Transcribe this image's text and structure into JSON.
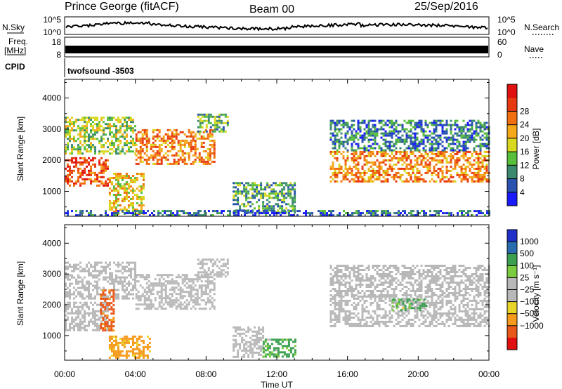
{
  "header": {
    "station": "Prince George (fitACF)",
    "beam": "Beam 00",
    "date": "25/Sep/2016"
  },
  "status_panels": {
    "nsky_label": "N.Sky",
    "nsky_top_tick": "10^5",
    "nsky_bottom_tick": "10^0",
    "nsearch_label": "N.Search",
    "nsearch_top_tick": "10^5",
    "nsearch_bottom_tick": "10^0",
    "freq_label_line1": "Freq.",
    "freq_label_line2": "[MHz]",
    "freq_top_tick": "18",
    "freq_bottom_tick": "8",
    "nave_label": "Nave",
    "nave_top_tick": "60",
    "nave_bottom_tick": "0",
    "cpid_label": "CPID",
    "cpid_value": "twofsound -3503"
  },
  "colors": {
    "power_scale": [
      "#1a1aff",
      "#2a52b0",
      "#3c8a6e",
      "#58bf3a",
      "#d8d820",
      "#f5a81a",
      "#f07010",
      "#e83a10",
      "#e01010"
    ],
    "velocity_scale": [
      "#e01010",
      "#e85818",
      "#f59a1a",
      "#e8d428",
      "#b8b8b8",
      "#b8b8b8",
      "#7ccc40",
      "#3ca050",
      "#2a6cb0",
      "#2030c8"
    ]
  },
  "chart_data": [
    {
      "type": "heatmap",
      "title": "",
      "xlabel": "",
      "ylabel": "Slant Range [km]",
      "x_range_hours": [
        0,
        24
      ],
      "x_ticks": [
        "00:00",
        "04:00",
        "08:00",
        "12:00",
        "16:00",
        "20:00",
        "00:00"
      ],
      "ylim": [
        200,
        4600
      ],
      "y_ticks": [
        1000,
        2000,
        3000,
        4000
      ],
      "colorbar": {
        "label": "Power [dB]",
        "range": [
          0,
          32
        ],
        "ticks": [
          "4",
          "8",
          "12",
          "16",
          "20",
          "24",
          "28"
        ]
      },
      "echo_regions": [
        {
          "t_start": 0.0,
          "t_end": 2.5,
          "r_start": 1200,
          "r_end": 2100,
          "level_db": 26
        },
        {
          "t_start": 0.0,
          "t_end": 4.0,
          "r_start": 2200,
          "r_end": 3400,
          "level_db": 14
        },
        {
          "t_start": 2.5,
          "t_end": 4.5,
          "r_start": 300,
          "r_end": 1600,
          "level_db": 18
        },
        {
          "t_start": 4.0,
          "t_end": 8.5,
          "r_start": 1900,
          "r_end": 3000,
          "level_db": 22
        },
        {
          "t_start": 7.5,
          "t_end": 9.2,
          "r_start": 2900,
          "r_end": 3500,
          "level_db": 12
        },
        {
          "t_start": 9.5,
          "t_end": 13.0,
          "r_start": 300,
          "r_end": 1300,
          "level_db": 10
        },
        {
          "t_start": 15.0,
          "t_end": 24.0,
          "r_start": 1300,
          "r_end": 2300,
          "level_db": 22
        },
        {
          "t_start": 15.0,
          "t_end": 24.0,
          "r_start": 2300,
          "r_end": 3300,
          "level_db": 8
        },
        {
          "t_start": 0.0,
          "t_end": 24.0,
          "r_start": 200,
          "r_end": 400,
          "level_db": 6
        }
      ]
    },
    {
      "type": "heatmap",
      "title": "",
      "xlabel": "Time UT",
      "ylabel": "Slant Range [km]",
      "x_range_hours": [
        0,
        24
      ],
      "x_ticks": [
        "00:00",
        "04:00",
        "08:00",
        "12:00",
        "16:00",
        "20:00",
        "00:00"
      ],
      "ylim": [
        200,
        4600
      ],
      "y_ticks": [
        1000,
        2000,
        3000,
        4000
      ],
      "colorbar": {
        "label": "Velocity [m s⁻¹]",
        "ticks": [
          "1000",
          "500",
          "100",
          "25",
          "−25",
          "−100",
          "−500",
          "−1000"
        ]
      },
      "echo_regions": [
        {
          "t_start": 0.0,
          "t_end": 2.5,
          "r_start": 1200,
          "r_end": 2100,
          "velocity": 0
        },
        {
          "t_start": 0.0,
          "t_end": 4.0,
          "r_start": 2200,
          "r_end": 3400,
          "velocity": 0
        },
        {
          "t_start": 2.0,
          "t_end": 2.8,
          "r_start": 1200,
          "r_end": 2500,
          "velocity": -600
        },
        {
          "t_start": 2.5,
          "t_end": 4.8,
          "r_start": 300,
          "r_end": 1000,
          "velocity": -200
        },
        {
          "t_start": 4.0,
          "t_end": 8.5,
          "r_start": 1900,
          "r_end": 3000,
          "velocity": 0
        },
        {
          "t_start": 7.5,
          "t_end": 9.2,
          "r_start": 2900,
          "r_end": 3500,
          "velocity": 0
        },
        {
          "t_start": 9.5,
          "t_end": 11.2,
          "r_start": 300,
          "r_end": 1300,
          "velocity": 0
        },
        {
          "t_start": 11.2,
          "t_end": 13.0,
          "r_start": 300,
          "r_end": 900,
          "velocity": 150
        },
        {
          "t_start": 15.0,
          "t_end": 24.0,
          "r_start": 1300,
          "r_end": 2300,
          "velocity": 0
        },
        {
          "t_start": 18.5,
          "t_end": 20.5,
          "r_start": 1800,
          "r_end": 2200,
          "velocity": 120
        },
        {
          "t_start": 15.0,
          "t_end": 24.0,
          "r_start": 2300,
          "r_end": 3300,
          "velocity": 0
        }
      ]
    }
  ]
}
